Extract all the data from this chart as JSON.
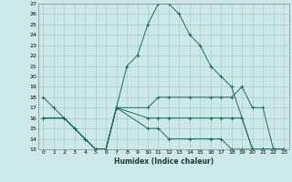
{
  "xlabel": "Humidex (Indice chaleur)",
  "background_color": "#cce9e8",
  "grid_color": "#aacccc",
  "line_color": "#1a6b60",
  "xlim": [
    -0.5,
    23.5
  ],
  "ylim": [
    13,
    27
  ],
  "xticks": [
    0,
    1,
    2,
    3,
    4,
    5,
    6,
    7,
    8,
    9,
    10,
    11,
    12,
    13,
    14,
    15,
    16,
    17,
    18,
    19,
    20,
    21,
    22,
    23
  ],
  "yticks": [
    13,
    14,
    15,
    16,
    17,
    18,
    19,
    20,
    21,
    22,
    23,
    24,
    25,
    26,
    27
  ],
  "lines": [
    {
      "x": [
        0,
        1,
        2,
        3,
        4,
        5,
        6,
        7,
        8,
        9,
        10,
        11,
        12,
        13,
        14,
        15,
        16,
        17,
        18,
        19,
        20
      ],
      "y": [
        18,
        17,
        16,
        15,
        14,
        13,
        13,
        17,
        21,
        22,
        25,
        27,
        27,
        26,
        24,
        23,
        21,
        20,
        19,
        16,
        13
      ]
    },
    {
      "x": [
        0,
        2,
        3,
        4,
        5,
        6,
        7,
        10,
        11,
        12,
        14,
        16,
        17,
        18,
        19,
        20,
        21,
        22,
        23
      ],
      "y": [
        16,
        16,
        15,
        14,
        13,
        13,
        17,
        17,
        18,
        18,
        18,
        18,
        18,
        18,
        19,
        17,
        17,
        13,
        13
      ]
    },
    {
      "x": [
        0,
        2,
        3,
        4,
        5,
        6,
        7,
        10,
        11,
        12,
        14,
        16,
        17,
        18,
        19,
        20,
        21,
        22,
        23
      ],
      "y": [
        16,
        16,
        15,
        14,
        13,
        13,
        17,
        16,
        16,
        16,
        16,
        16,
        16,
        16,
        16,
        13,
        13,
        13,
        13
      ]
    },
    {
      "x": [
        0,
        2,
        3,
        4,
        5,
        6,
        7,
        10,
        11,
        12,
        14,
        16,
        17,
        18,
        19,
        20,
        21,
        22,
        23
      ],
      "y": [
        16,
        16,
        15,
        14,
        13,
        13,
        17,
        15,
        15,
        14,
        14,
        14,
        14,
        13,
        13,
        13,
        13,
        13,
        13
      ]
    }
  ]
}
